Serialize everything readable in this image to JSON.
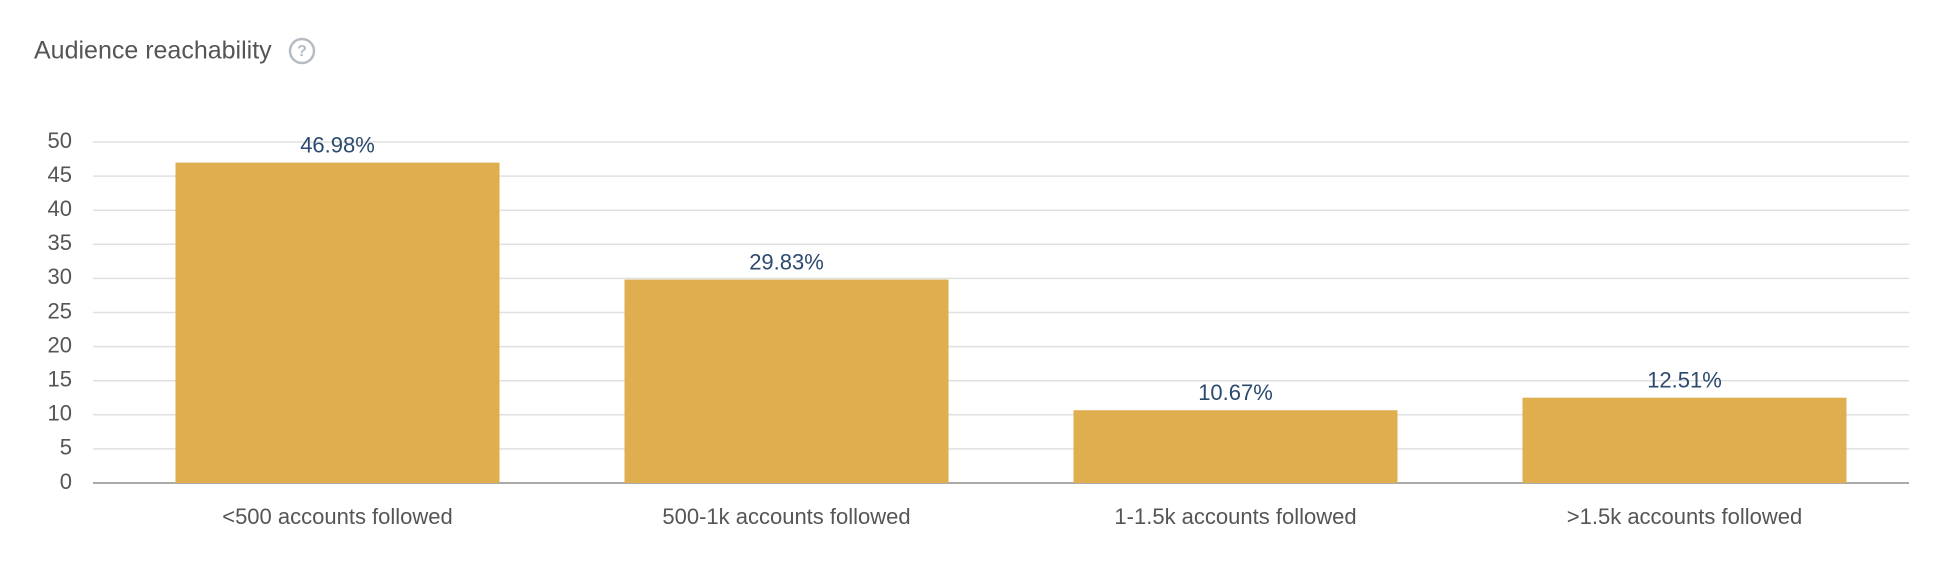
{
  "chart_data": {
    "type": "bar",
    "title": "Audience reachability",
    "categories": [
      "<500 accounts followed",
      "500-1k accounts followed",
      "1-1.5k accounts followed",
      ">1.5k accounts followed"
    ],
    "values": [
      46.98,
      29.83,
      10.67,
      12.51
    ],
    "value_labels": [
      "46.98%",
      "29.83%",
      "10.67%",
      "12.51%"
    ],
    "color": "#dfae4f",
    "ylim": [
      0,
      50
    ],
    "yticks": [
      0,
      5,
      10,
      15,
      20,
      25,
      30,
      35,
      40,
      45,
      50
    ],
    "grid": true
  }
}
